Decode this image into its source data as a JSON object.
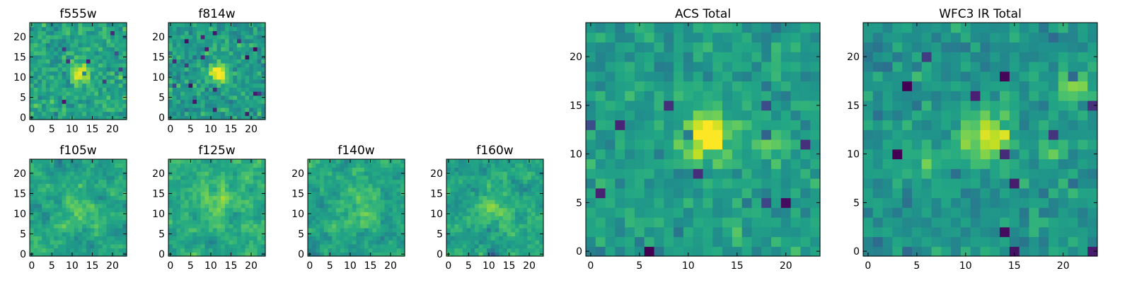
{
  "colormap": "viridis",
  "colors": {
    "viridis_low": "#440154",
    "viridis_mid": "#21918c",
    "viridis_high": "#fde725",
    "background": "#ffffff",
    "axes": "#000000"
  },
  "chart_data": [
    {
      "type": "heatmap",
      "title": "f555w",
      "grid_size": 24,
      "xticks": [
        0,
        5,
        10,
        15,
        20
      ],
      "yticks": [
        0,
        5,
        10,
        15,
        20
      ],
      "xlim": [
        -0.5,
        23.5
      ],
      "ylim": [
        -0.5,
        23.5
      ],
      "peak": [
        12,
        11
      ],
      "seed": 11,
      "smooth": 0,
      "bg": 0.58,
      "noise": 0.2,
      "amp": 0.5,
      "sigma": 1.6,
      "extra_peaks": []
    },
    {
      "type": "heatmap",
      "title": "f814w",
      "grid_size": 24,
      "xticks": [
        0,
        5,
        10,
        15,
        20
      ],
      "yticks": [
        0,
        5,
        10,
        15,
        20
      ],
      "xlim": [
        -0.5,
        23.5
      ],
      "ylim": [
        -0.5,
        23.5
      ],
      "peak": [
        12,
        11
      ],
      "seed": 23,
      "smooth": 0,
      "bg": 0.55,
      "noise": 0.2,
      "amp": 0.6,
      "sigma": 1.5,
      "extra_peaks": []
    },
    {
      "type": "heatmap",
      "title": "f105w",
      "grid_size": 24,
      "xticks": [
        0,
        5,
        10,
        15,
        20
      ],
      "yticks": [
        0,
        5,
        10,
        15,
        20
      ],
      "xlim": [
        -0.5,
        23.5
      ],
      "ylim": [
        -0.5,
        23.5
      ],
      "peak": [
        12,
        12
      ],
      "seed": 37,
      "smooth": 1,
      "bg": 0.6,
      "noise": 0.28,
      "amp": 0.15,
      "sigma": 3,
      "extra_peaks": []
    },
    {
      "type": "heatmap",
      "title": "f125w",
      "grid_size": 24,
      "xticks": [
        0,
        5,
        10,
        15,
        20
      ],
      "yticks": [
        0,
        5,
        10,
        15,
        20
      ],
      "xlim": [
        -0.5,
        23.5
      ],
      "ylim": [
        -0.5,
        23.5
      ],
      "peak": [
        12,
        14
      ],
      "seed": 51,
      "smooth": 1,
      "bg": 0.62,
      "noise": 0.28,
      "amp": 0.2,
      "sigma": 3,
      "extra_peaks": []
    },
    {
      "type": "heatmap",
      "title": "f140w",
      "grid_size": 24,
      "xticks": [
        0,
        5,
        10,
        15,
        20
      ],
      "yticks": [
        0,
        5,
        10,
        15,
        20
      ],
      "xlim": [
        -0.5,
        23.5
      ],
      "ylim": [
        -0.5,
        23.5
      ],
      "peak": [
        13,
        12
      ],
      "seed": 67,
      "smooth": 1,
      "bg": 0.6,
      "noise": 0.28,
      "amp": 0.2,
      "sigma": 3,
      "extra_peaks": []
    },
    {
      "type": "heatmap",
      "title": "f160w",
      "grid_size": 24,
      "xticks": [
        0,
        5,
        10,
        15,
        20
      ],
      "yticks": [
        0,
        5,
        10,
        15,
        20
      ],
      "xlim": [
        -0.5,
        23.5
      ],
      "ylim": [
        -0.5,
        23.5
      ],
      "peak": [
        11,
        12
      ],
      "seed": 83,
      "smooth": 1,
      "bg": 0.6,
      "noise": 0.28,
      "amp": 0.15,
      "sigma": 3,
      "extra_peaks": []
    },
    {
      "type": "heatmap",
      "title": "ACS Total",
      "grid_size": 24,
      "xticks": [
        0,
        5,
        10,
        15,
        20
      ],
      "yticks": [
        0,
        5,
        10,
        15,
        20
      ],
      "xlim": [
        -0.5,
        23.5
      ],
      "ylim": [
        -0.5,
        23.5
      ],
      "peak": [
        12,
        12
      ],
      "seed": 97,
      "smooth": 0,
      "bg": 0.55,
      "noise": 0.18,
      "amp": 0.55,
      "sigma": 1.6,
      "extra_peaks": [
        [
          18,
          11,
          0.25
        ]
      ]
    },
    {
      "type": "heatmap",
      "title": "WFC3 IR Total",
      "grid_size": 24,
      "xticks": [
        0,
        5,
        10,
        15,
        20
      ],
      "yticks": [
        0,
        5,
        10,
        15,
        20
      ],
      "xlim": [
        -0.5,
        23.5
      ],
      "ylim": [
        -0.5,
        23.5
      ],
      "peak": [
        12,
        12
      ],
      "seed": 113,
      "smooth": 0,
      "bg": 0.52,
      "noise": 0.18,
      "amp": 0.45,
      "sigma": 1.8,
      "extra_peaks": [
        [
          21,
          17,
          0.35
        ],
        [
          6,
          9,
          0.2
        ],
        [
          19,
          10,
          0.2
        ]
      ]
    }
  ]
}
